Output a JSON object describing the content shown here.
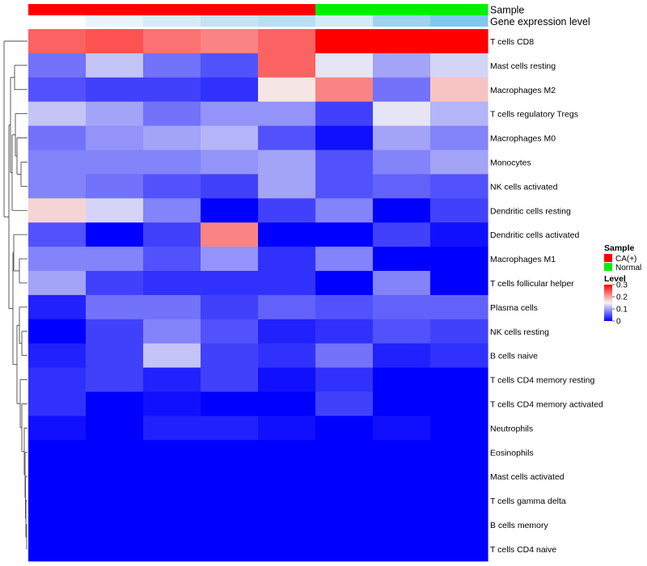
{
  "chart_data": {
    "type": "heatmap",
    "rows": [
      "T cells CD8",
      "Mast cells resting",
      "Macrophages M2",
      "T cells regulatory  Tregs",
      "Macrophages M0",
      "Monocytes",
      "NK cells activated",
      "Dendritic cells resting",
      "Dendritic cells activated",
      "Macrophages M1",
      "T cells follicular helper",
      "Plasma cells",
      "NK cells resting",
      "B cells naive",
      "T cells CD4 memory resting",
      "T cells CD4 memory activated",
      "Neutrophils",
      "Eosinophils",
      "Mast cells activated",
      "T cells gamma delta",
      "B cells memory",
      "T cells CD4 naive"
    ],
    "columns": 8,
    "values": [
      [
        0.24,
        0.25,
        0.23,
        0.22,
        0.24,
        0.3,
        0.3,
        0.3
      ],
      [
        0.07,
        0.12,
        0.07,
        0.05,
        0.24,
        0.14,
        0.1,
        0.13
      ],
      [
        0.05,
        0.04,
        0.04,
        0.03,
        0.16,
        0.22,
        0.07,
        0.18
      ],
      [
        0.12,
        0.1,
        0.07,
        0.09,
        0.09,
        0.04,
        0.14,
        0.11
      ],
      [
        0.07,
        0.09,
        0.1,
        0.11,
        0.05,
        0.01,
        0.1,
        0.08
      ],
      [
        0.08,
        0.08,
        0.08,
        0.09,
        0.1,
        0.05,
        0.08,
        0.1
      ],
      [
        0.08,
        0.07,
        0.05,
        0.04,
        0.1,
        0.05,
        0.06,
        0.05
      ],
      [
        0.17,
        0.13,
        0.08,
        0.0,
        0.04,
        0.08,
        0.0,
        0.04
      ],
      [
        0.05,
        0.0,
        0.04,
        0.22,
        0.0,
        0.0,
        0.04,
        0.01
      ],
      [
        0.08,
        0.08,
        0.05,
        0.09,
        0.03,
        0.08,
        0.0,
        0.0
      ],
      [
        0.1,
        0.04,
        0.03,
        0.03,
        0.03,
        0.0,
        0.08,
        0.0
      ],
      [
        0.02,
        0.07,
        0.07,
        0.04,
        0.06,
        0.05,
        0.06,
        0.06
      ],
      [
        0.0,
        0.04,
        0.08,
        0.05,
        0.02,
        0.03,
        0.05,
        0.04
      ],
      [
        0.02,
        0.04,
        0.12,
        0.04,
        0.03,
        0.07,
        0.02,
        0.03
      ],
      [
        0.03,
        0.04,
        0.02,
        0.04,
        0.01,
        0.03,
        0.0,
        0.0
      ],
      [
        0.03,
        0.0,
        0.01,
        0.0,
        0.0,
        0.04,
        0.0,
        0.0
      ],
      [
        0.01,
        0.0,
        0.02,
        0.02,
        0.01,
        0.0,
        0.01,
        0.0
      ],
      [
        0.0,
        0.0,
        0.0,
        0.0,
        0.0,
        0.0,
        0.0,
        0.0
      ],
      [
        0.0,
        0.0,
        0.0,
        0.0,
        0.0,
        0.0,
        0.0,
        0.0
      ],
      [
        0.0,
        0.0,
        0.0,
        0.0,
        0.0,
        0.0,
        0.0,
        0.0
      ],
      [
        0.0,
        0.0,
        0.0,
        0.0,
        0.0,
        0.0,
        0.0,
        0.0
      ],
      [
        0.0,
        0.0,
        0.0,
        0.0,
        0.0,
        0.0,
        0.0,
        0.0
      ]
    ],
    "annotations": {
      "sample": {
        "label": "Sample",
        "values": [
          "CA(+)",
          "CA(+)",
          "CA(+)",
          "CA(+)",
          "CA(+)",
          "Normal",
          "Normal",
          "Normal"
        ]
      },
      "gene_expression": {
        "label": "Gene expression level",
        "values": [
          0.0,
          0.02,
          0.07,
          0.12,
          0.16,
          0.07,
          0.22,
          0.3
        ],
        "colors": [
          "#ffffff",
          "#eaf5fb",
          "#d6ecf6",
          "#c4e4f3",
          "#b8dff2",
          "#d3ebf6",
          "#9dd3ef",
          "#7fc8ee"
        ]
      }
    },
    "legend": {
      "sample": {
        "title": "Sample",
        "items": [
          {
            "label": "CA(+)",
            "color": "#ff0000"
          },
          {
            "label": "Normal",
            "color": "#00ee00"
          }
        ]
      },
      "level": {
        "title": "Level",
        "ticks": [
          "0.3",
          "0.2",
          "0.1",
          "0"
        ],
        "tick_values": [
          0.3,
          0.2,
          0.1,
          0
        ],
        "range": [
          0,
          0.3
        ]
      }
    },
    "color_scale": {
      "low": "#0000ff",
      "mid": "#f5f5f5",
      "high": "#ff0000",
      "mid_value": 0.15
    }
  }
}
